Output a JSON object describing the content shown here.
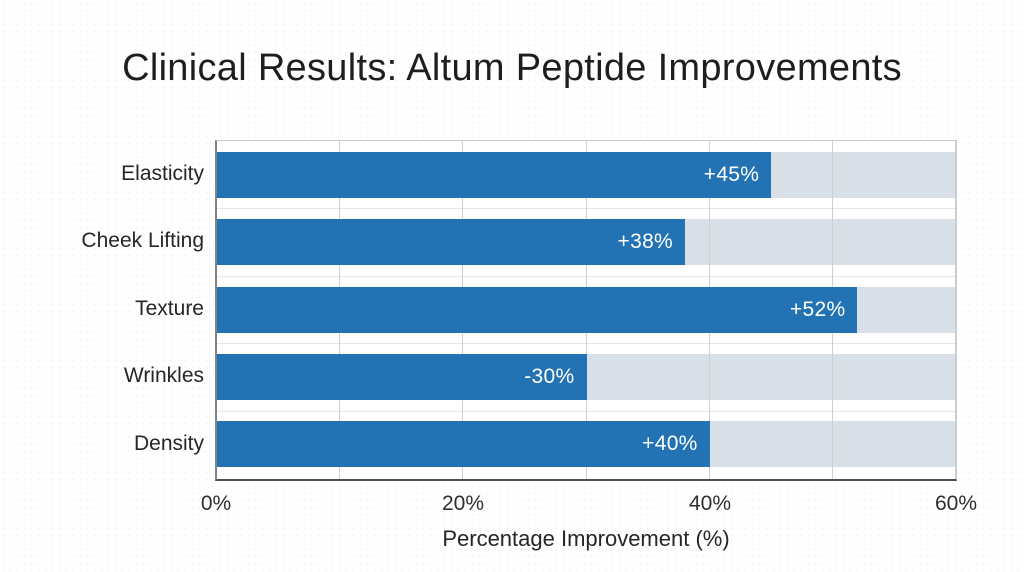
{
  "chart_data": {
    "type": "bar",
    "orientation": "horizontal",
    "title": "Clinical Results: Altum Peptide Improvements",
    "categories": [
      "Elasticity",
      "Cheek Lifting",
      "Texture",
      "Wrinkles",
      "Density"
    ],
    "values": [
      45,
      38,
      52,
      -30,
      40
    ],
    "value_labels": [
      "+45%",
      "+38%",
      "+52%",
      "-30%",
      "+40%"
    ],
    "xlabel": "Percentage Improvement (%)",
    "x_ticks": [
      "0%",
      "20%",
      "40%",
      "60%"
    ],
    "x_tick_values": [
      0,
      20,
      40,
      60
    ],
    "xlim": [
      0,
      60
    ],
    "minor_gridline_step": 10,
    "grid": "vertical-minor-on",
    "legend": "none",
    "track_full_width": true,
    "colors": {
      "bar": "#2373b4",
      "track": "#d8dfe6",
      "grid": "#cbd0d5",
      "band_line": "#e3e6ea",
      "frame": "#c5cbd1",
      "spine_left": "#7e8388",
      "spine_bottom": "#4d5155",
      "title_text": "#1e1e1e",
      "body_text": "#262626",
      "tick_text": "#2f2f2f",
      "value_text": "#ffffff"
    }
  }
}
